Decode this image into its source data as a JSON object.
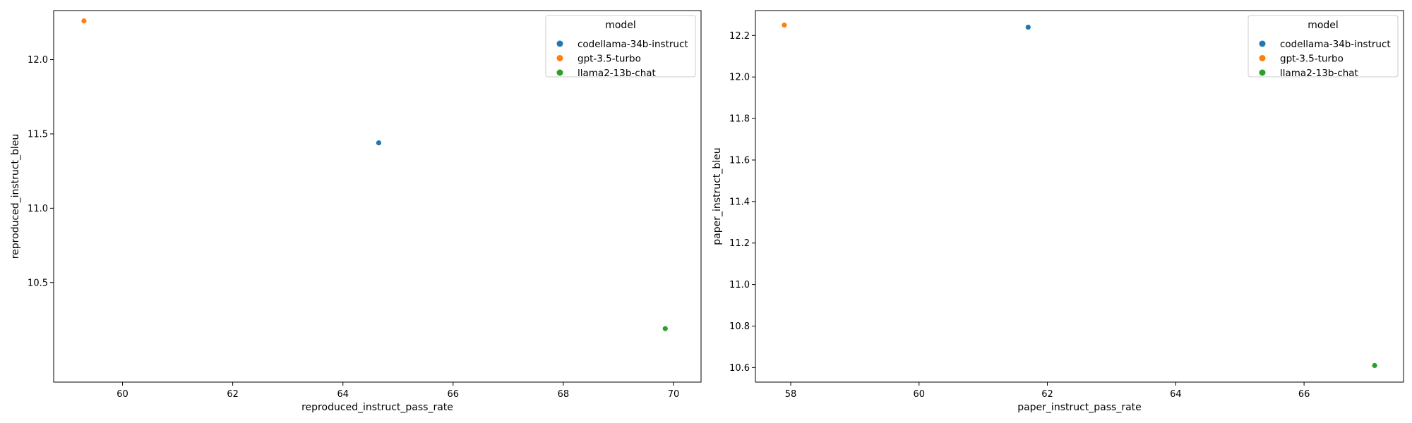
{
  "colors": {
    "codellama-34b-instruct": "#1f77b4",
    "gpt-3.5-turbo": "#ff7f0e",
    "llama2-13b-chat": "#2ca02c"
  },
  "chart_data": [
    {
      "type": "scatter",
      "xlabel": "reproduced_instruct_pass_rate",
      "ylabel": "reproduced_instruct_bleu",
      "xlim": [
        58.75,
        70.5
      ],
      "ylim": [
        9.83,
        12.33
      ],
      "xticks": [
        60,
        62,
        64,
        66,
        68,
        70
      ],
      "yticks": [
        10.5,
        11.0,
        11.5,
        12.0
      ],
      "xtick_labels": [
        "60",
        "62",
        "64",
        "66",
        "68",
        "70"
      ],
      "ytick_labels": [
        "10.5",
        "11.0",
        "11.5",
        "12.0"
      ],
      "legend": {
        "title": "model",
        "placement": "upper right",
        "entries": [
          "codellama-34b-instruct",
          "gpt-3.5-turbo",
          "llama2-13b-chat"
        ]
      },
      "grid": false,
      "series": [
        {
          "name": "codellama-34b-instruct",
          "x": 64.65,
          "y": 11.44
        },
        {
          "name": "gpt-3.5-turbo",
          "x": 59.3,
          "y": 12.26
        },
        {
          "name": "llama2-13b-chat",
          "x": 69.85,
          "y": 10.19
        }
      ]
    },
    {
      "type": "scatter",
      "xlabel": "paper_instruct_pass_rate",
      "ylabel": "paper_instruct_bleu",
      "xlim": [
        57.45,
        67.55
      ],
      "ylim": [
        10.53,
        12.32
      ],
      "xticks": [
        58,
        60,
        62,
        64,
        66
      ],
      "yticks": [
        10.6,
        10.8,
        11.0,
        11.2,
        11.4,
        11.6,
        11.8,
        12.0,
        12.2
      ],
      "xtick_labels": [
        "58",
        "60",
        "62",
        "64",
        "66"
      ],
      "ytick_labels": [
        "10.6",
        "10.8",
        "11.0",
        "11.2",
        "11.4",
        "11.6",
        "11.8",
        "12.0",
        "12.2"
      ],
      "legend": {
        "title": "model",
        "placement": "upper right",
        "entries": [
          "codellama-34b-instruct",
          "gpt-3.5-turbo",
          "llama2-13b-chat"
        ]
      },
      "grid": false,
      "series": [
        {
          "name": "codellama-34b-instruct",
          "x": 61.7,
          "y": 12.24
        },
        {
          "name": "gpt-3.5-turbo",
          "x": 57.9,
          "y": 12.25
        },
        {
          "name": "llama2-13b-chat",
          "x": 67.1,
          "y": 10.61
        }
      ]
    }
  ]
}
